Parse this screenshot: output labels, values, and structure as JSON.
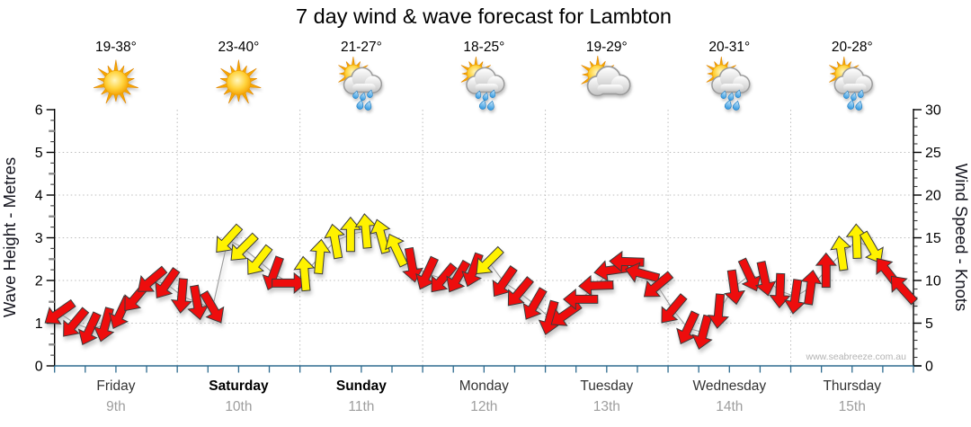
{
  "title": "7 day wind & wave forecast for Lambton",
  "watermark": "www.seabreeze.com.au",
  "days": [
    {
      "name": "Friday",
      "date": "9th",
      "temp": "19-38°",
      "icon": "sunny",
      "weekend": false
    },
    {
      "name": "Saturday",
      "date": "10th",
      "temp": "23-40°",
      "icon": "sunny",
      "weekend": true
    },
    {
      "name": "Sunday",
      "date": "11th",
      "temp": "21-27°",
      "icon": "sun-showers",
      "weekend": true
    },
    {
      "name": "Monday",
      "date": "12th",
      "temp": "18-25°",
      "icon": "sun-showers",
      "weekend": false
    },
    {
      "name": "Tuesday",
      "date": "13th",
      "temp": "19-29°",
      "icon": "sun-cloud",
      "weekend": false
    },
    {
      "name": "Wednesday",
      "date": "14th",
      "temp": "20-31°",
      "icon": "sun-showers",
      "weekend": false
    },
    {
      "name": "Thursday",
      "date": "15th",
      "temp": "20-28°",
      "icon": "sun-showers",
      "weekend": false
    }
  ],
  "colors": {
    "arrow_red": "#ee1111",
    "arrow_yellow": "#fff200",
    "arrow_outline": "#3a3a3a",
    "series_line": "#9a9a9a",
    "baseline": "#2e6b8f",
    "axis": "#000000",
    "grid": "#bcbcbc",
    "date_text": "#9e9e9e",
    "watermark_text": "#b3b3b3"
  },
  "chart_data": {
    "type": "line",
    "subtype": "wind-direction-arrow-series",
    "title": "7 day wind & wave forecast for Lambton",
    "y_left": {
      "label": "Wave Height - Metres",
      "range": [
        0,
        6
      ],
      "major_ticks": [
        0,
        1,
        2,
        3,
        4,
        5,
        6
      ],
      "minor_step": 0.25
    },
    "y_right": {
      "label": "Wind Speed - Knots",
      "range": [
        0,
        30
      ],
      "major_ticks": [
        0,
        5,
        10,
        15,
        20,
        25,
        30
      ],
      "minor_step": 1
    },
    "x_categories": [
      "Friday 9th",
      "Saturday 10th",
      "Sunday 11th",
      "Monday 12th",
      "Tuesday 13th",
      "Wednesday 14th",
      "Thursday 15th"
    ],
    "points_per_day": 8,
    "grid": "dotted horizontal at each metre (1-5) and vertical at day boundaries",
    "legend": "none",
    "note": "arrows plotted on wind-speed axis (1 m wave = 5 kn pixel scale); arrow heading = direction wind blows toward; color r=red (lighter wind), y=yellow (stronger wind)",
    "point_format": [
      "wind_knots",
      "arrow_heading_deg_0N_cw",
      "color"
    ],
    "points": [
      [
        6.2,
        235,
        "r"
      ],
      [
        5.0,
        220,
        "r"
      ],
      [
        4.3,
        205,
        "r"
      ],
      [
        4.8,
        195,
        "r"
      ],
      [
        6.2,
        205,
        "r"
      ],
      [
        8.0,
        220,
        "r"
      ],
      [
        10.0,
        230,
        "r"
      ],
      [
        9.6,
        215,
        "r"
      ],
      [
        8.2,
        185,
        "r"
      ],
      [
        7.4,
        170,
        "r"
      ],
      [
        6.8,
        150,
        "r"
      ],
      [
        14.8,
        222,
        "y"
      ],
      [
        13.8,
        225,
        "y"
      ],
      [
        12.3,
        218,
        "y"
      ],
      [
        10.8,
        200,
        "r"
      ],
      [
        9.7,
        90,
        "r"
      ],
      [
        10.8,
        355,
        "y"
      ],
      [
        12.8,
        5,
        "y"
      ],
      [
        14.6,
        350,
        "y"
      ],
      [
        15.4,
        0,
        "y"
      ],
      [
        15.8,
        355,
        "y"
      ],
      [
        15.2,
        345,
        "y"
      ],
      [
        13.6,
        335,
        "y"
      ],
      [
        11.8,
        170,
        "r"
      ],
      [
        10.8,
        205,
        "r"
      ],
      [
        10.2,
        220,
        "r"
      ],
      [
        10.4,
        210,
        "r"
      ],
      [
        11.2,
        200,
        "r"
      ],
      [
        12.2,
        225,
        "y"
      ],
      [
        9.8,
        215,
        "r"
      ],
      [
        8.6,
        220,
        "r"
      ],
      [
        7.2,
        210,
        "r"
      ],
      [
        5.6,
        195,
        "r"
      ],
      [
        6.0,
        235,
        "r"
      ],
      [
        7.8,
        270,
        "r"
      ],
      [
        9.4,
        268,
        "r"
      ],
      [
        11.2,
        262,
        "r"
      ],
      [
        12.2,
        272,
        "r"
      ],
      [
        10.8,
        285,
        "r"
      ],
      [
        9.4,
        230,
        "r"
      ],
      [
        6.6,
        220,
        "r"
      ],
      [
        4.4,
        205,
        "r"
      ],
      [
        3.9,
        195,
        "r"
      ],
      [
        6.4,
        185,
        "r"
      ],
      [
        9.2,
        172,
        "r"
      ],
      [
        10.6,
        155,
        "r"
      ],
      [
        10.2,
        168,
        "r"
      ],
      [
        8.8,
        182,
        "r"
      ],
      [
        8.1,
        188,
        "r"
      ],
      [
        9.2,
        8,
        "r"
      ],
      [
        11.2,
        0,
        "r"
      ],
      [
        13.2,
        352,
        "y"
      ],
      [
        14.6,
        358,
        "y"
      ],
      [
        13.8,
        150,
        "y"
      ],
      [
        11.0,
        322,
        "r"
      ],
      [
        9.0,
        318,
        "r"
      ]
    ]
  }
}
